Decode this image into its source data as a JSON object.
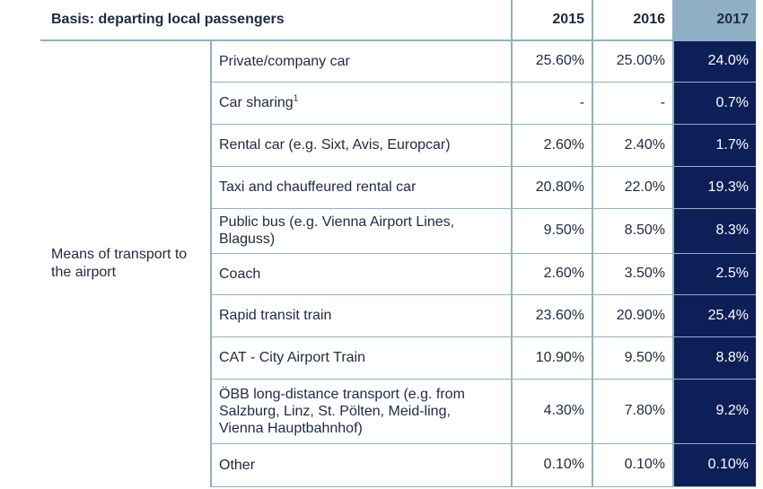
{
  "header": {
    "basis": "Basis: departing local passengers",
    "years": [
      "2015",
      "2016",
      "2017"
    ]
  },
  "group_label": "Means of transport to the airport",
  "rows": [
    {
      "label": "Private/company car",
      "sup": "",
      "v2015": "25.60%",
      "v2016": "25.00%",
      "v2017": "24.0%"
    },
    {
      "label": "Car sharing",
      "sup": "1",
      "v2015": "-",
      "v2016": "-",
      "v2017": "0.7%"
    },
    {
      "label": "Rental car (e.g. Sixt, Avis, Europcar)",
      "sup": "",
      "v2015": "2.60%",
      "v2016": "2.40%",
      "v2017": "1.7%"
    },
    {
      "label": "Taxi and chauffeured rental car",
      "sup": "",
      "v2015": "20.80%",
      "v2016": "22.0%",
      "v2017": "19.3%"
    },
    {
      "label": "Public bus (e.g. Vienna Airport Lines, Blaguss)",
      "sup": "",
      "v2015": "9.50%",
      "v2016": "8.50%",
      "v2017": "8.3%"
    },
    {
      "label": "Coach",
      "sup": "",
      "v2015": "2.60%",
      "v2016": "3.50%",
      "v2017": "2.5%"
    },
    {
      "label": "Rapid transit train",
      "sup": "",
      "v2015": "23.60%",
      "v2016": "20.90%",
      "v2017": "25.4%"
    },
    {
      "label": "CAT - City Airport Train",
      "sup": "",
      "v2015": "10.90%",
      "v2016": "9.50%",
      "v2017": "8.8%"
    },
    {
      "label": "ÖBB long-distance transport (e.g. from Salzburg, Linz, St. Pölten, Meid-ling, Vienna Hauptbahnhof)",
      "sup": "",
      "v2015": "4.30%",
      "v2016": "7.80%",
      "v2017": "9.2%"
    },
    {
      "label": "Other",
      "sup": "",
      "v2015": "0.10%",
      "v2016": "0.10%",
      "v2017": "0.10%"
    }
  ],
  "colors": {
    "highlight_dark": "#0d1f57",
    "highlight_light": "#8fb0c4",
    "rule": "#8fb0c4",
    "text": "#1e2a40"
  }
}
